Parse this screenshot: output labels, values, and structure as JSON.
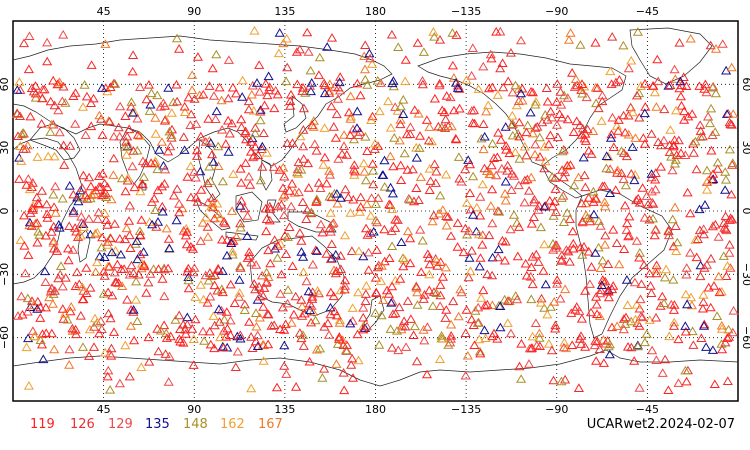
{
  "map": {
    "projection": "cylindrical equidistant, centered 180",
    "top_lon_ticks": [
      "45",
      "90",
      "135",
      "180",
      "−135",
      "−90",
      "−45"
    ],
    "bottom_lon_ticks": [
      "45",
      "90",
      "135",
      "180",
      "−135",
      "−90",
      "−45"
    ],
    "left_lat_ticks": [
      "60",
      "30",
      "0",
      "−30",
      "−60"
    ],
    "right_lat_ticks": [
      "60",
      "30",
      "0",
      "−30",
      "−60"
    ],
    "grid": "dotted",
    "marker_shape": "open triangle"
  },
  "legend": {
    "items": [
      {
        "label": "119",
        "color": "#ff2020"
      },
      {
        "label": "126",
        "color": "#e83030"
      },
      {
        "label": "129",
        "color": "#f04848"
      },
      {
        "label": "135",
        "color": "#101090"
      },
      {
        "label": "148",
        "color": "#a89028"
      },
      {
        "label": "162",
        "color": "#f0a030"
      },
      {
        "label": "167",
        "color": "#f07828"
      }
    ]
  },
  "stamp": "UCARwet2.2024-02-07"
}
